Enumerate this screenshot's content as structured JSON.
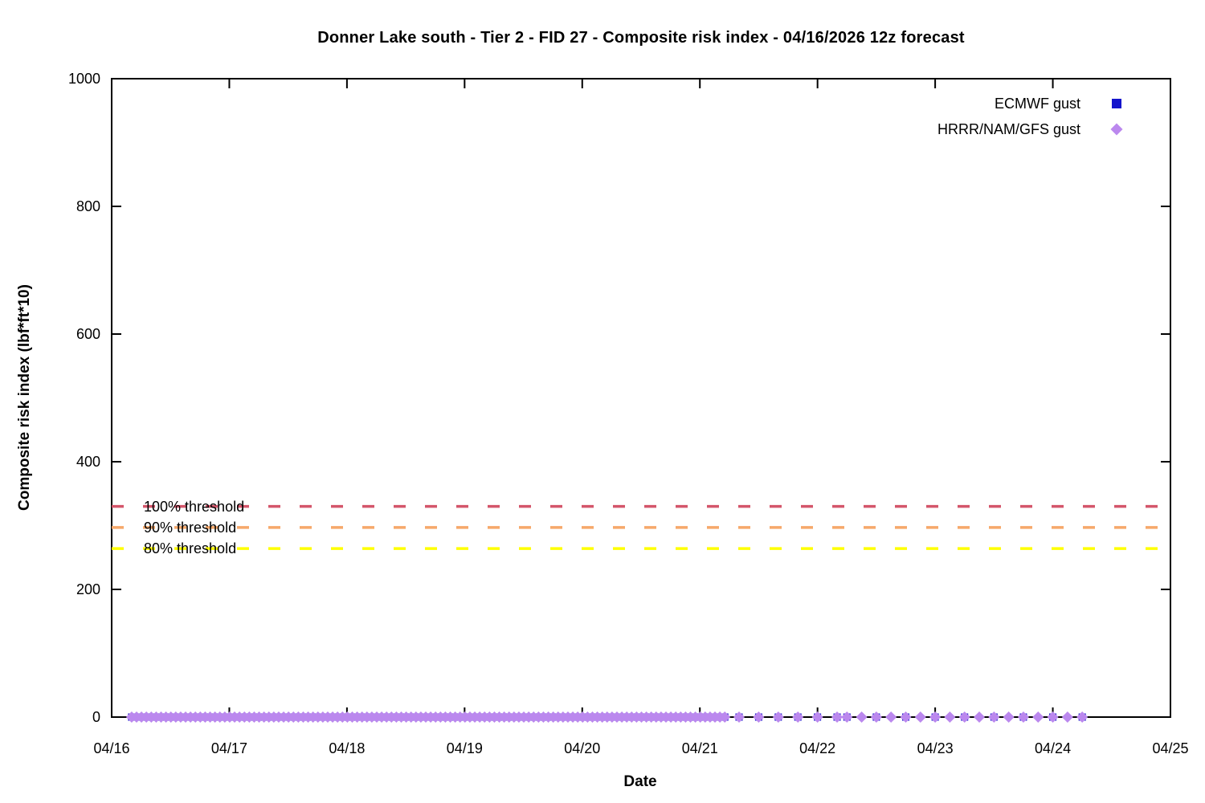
{
  "chart_data": {
    "type": "scatter",
    "title": "Donner Lake south - Tier 2 - FID 27 - Composite risk index - 04/16/2026 12z forecast",
    "xlabel": "Date",
    "ylabel": "Composite risk index (lbf*ft*10)",
    "ylim": [
      0,
      1000
    ],
    "yticks": [
      0,
      200,
      400,
      600,
      800,
      1000
    ],
    "xticks": [
      "04/16",
      "04/17",
      "04/18",
      "04/19",
      "04/20",
      "04/21",
      "04/22",
      "04/23",
      "04/24",
      "04/25"
    ],
    "x_axis_span_days": 9,
    "grid": false,
    "legend_position": "top-right-inside",
    "thresholds": [
      {
        "label": "100% threshold",
        "value": 330,
        "color": "#d4566b",
        "style": "dashed"
      },
      {
        "label": "90% threshold",
        "value": 297,
        "color": "#f6a86a",
        "style": "dashed"
      },
      {
        "label": "80% threshold",
        "value": 264,
        "color": "#ffff00",
        "style": "dashed"
      }
    ],
    "series": [
      {
        "name": "ECMWF gust",
        "marker": "square",
        "color": "#1414cc",
        "constant_value": 0,
        "segments": [
          {
            "start_day": 0.17,
            "end_day": 5.2,
            "step_hours": 1
          },
          {
            "start_day": 5.333,
            "end_day": 6.167,
            "step_hours": 4
          },
          {
            "start_day": 6.25,
            "end_day": 8.25,
            "step_hours": 6
          }
        ]
      },
      {
        "name": "HRRR/NAM/GFS gust",
        "marker": "diamond",
        "color": "#bb88ee",
        "constant_value": 0,
        "segments": [
          {
            "start_day": 0.17,
            "end_day": 5.2,
            "step_hours": 1
          },
          {
            "start_day": 5.333,
            "end_day": 6.167,
            "step_hours": 4
          },
          {
            "start_day": 6.25,
            "end_day": 8.25,
            "step_hours": 3
          }
        ]
      }
    ],
    "colors": {
      "background": "#ffffff",
      "axis": "#000000"
    }
  }
}
